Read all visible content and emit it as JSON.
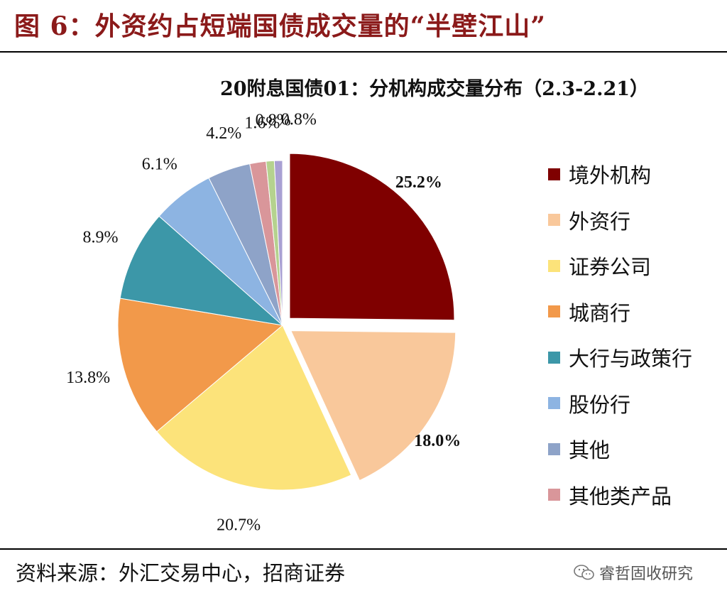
{
  "figure": {
    "title": "图 6：外资约占短端国债成交量的“半壁江山”",
    "source": "资料来源：外汇交易中心，招商证券",
    "watermark": "睿哲固收研究",
    "watermark_icon": "wechat-icon"
  },
  "chart_data": {
    "type": "pie",
    "title": "20附息国债01：分机构成交量分布（2.3-2.21）",
    "categories": [
      "境外机构",
      "外资行",
      "证券公司",
      "城商行",
      "大行与政策行",
      "股份行",
      "其他",
      "其他类产品",
      "",
      ""
    ],
    "values": [
      25.2,
      18.0,
      20.7,
      13.8,
      8.9,
      6.1,
      4.2,
      1.6,
      0.8,
      0.8
    ],
    "labels": [
      "25.2%",
      "18.0%",
      "20.7%",
      "13.8%",
      "8.9%",
      "6.1%",
      "4.2%",
      "1.6%",
      "0.8%",
      "0.8%"
    ],
    "colors": [
      "#7F0000",
      "#F9C89B",
      "#FCE37A",
      "#F2994A",
      "#3C97A8",
      "#8DB4E2",
      "#8EA3C8",
      "#D9969A",
      "#B5D28E",
      "#A9A0D3"
    ],
    "bold_labels": [
      true,
      true,
      false,
      false,
      false,
      false,
      false,
      false,
      false,
      false
    ],
    "exploded": [
      true,
      true,
      false,
      false,
      false,
      false,
      false,
      false,
      false,
      false
    ],
    "start_angle": "12 o'clock",
    "direction": "clockwise",
    "legend": {
      "position": "right",
      "items": [
        "境外机构",
        "外资行",
        "证券公司",
        "城商行",
        "大行与政策行",
        "股份行",
        "其他",
        "其他类产品"
      ]
    }
  }
}
